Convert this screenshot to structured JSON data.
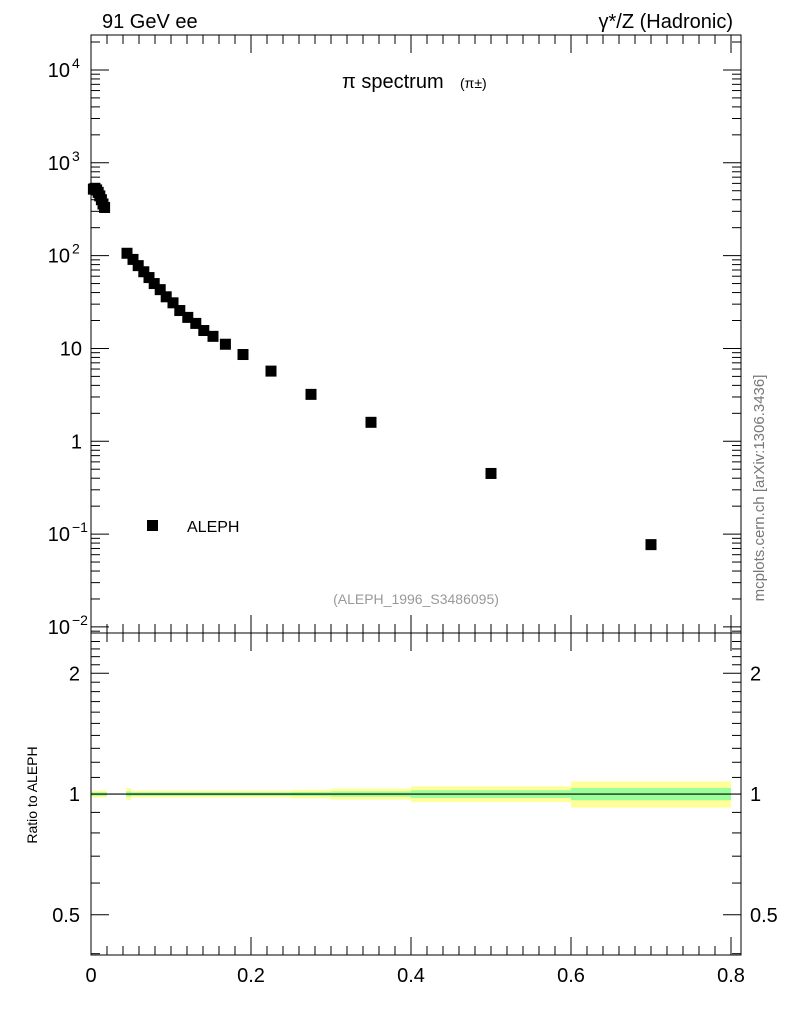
{
  "header": {
    "left": "91 GeV ee",
    "right": "γ*/Z (Hadronic)"
  },
  "side_label": "mcplots.cern.ch [arXiv:1306.3436]",
  "chart_data": [
    {
      "type": "scatter",
      "title": "π spectrum",
      "title_sub": "(π±)",
      "xlabel": "",
      "ylabel": "",
      "xscale": "linear",
      "yscale": "log",
      "xlim": [
        0,
        0.8125
      ],
      "ylim": [
        0.0086,
        23800
      ],
      "ytick_labels": [
        {
          "value": 0.01,
          "base": "10",
          "exp": "−2"
        },
        {
          "value": 0.1,
          "base": "10",
          "exp": "−1"
        },
        {
          "value": 1,
          "base": "1",
          "exp": ""
        },
        {
          "value": 10,
          "base": "10",
          "exp": ""
        },
        {
          "value": 100,
          "base": "10",
          "exp": "2"
        },
        {
          "value": 1000,
          "base": "10",
          "exp": "3"
        },
        {
          "value": 10000,
          "base": "10",
          "exp": "4"
        }
      ],
      "legend": {
        "placement": "bottom-left",
        "entries": [
          "ALEPH"
        ]
      },
      "annotation": "(ALEPH_1996_S3486095)",
      "series": [
        {
          "name": "ALEPH",
          "x": [
            0.003,
            0.005,
            0.007,
            0.009,
            0.011,
            0.013,
            0.015,
            0.017,
            0.045,
            0.0525,
            0.059,
            0.066,
            0.0725,
            0.079,
            0.0865,
            0.094,
            0.1025,
            0.111,
            0.121,
            0.131,
            0.141,
            0.1525,
            0.168,
            0.19,
            0.225,
            0.275,
            0.35,
            0.5,
            0.7
          ],
          "y": [
            520,
            530,
            510,
            480,
            440,
            400,
            360,
            330,
            106,
            91,
            78,
            67,
            58,
            50,
            43,
            36,
            31,
            25.6,
            21.6,
            18.6,
            15.6,
            13.5,
            11.1,
            8.6,
            5.7,
            3.2,
            1.6,
            0.45,
            0.077
          ]
        }
      ]
    },
    {
      "type": "area",
      "ylabel": "Ratio to ALEPH",
      "yscale": "log",
      "xlim": [
        0,
        0.8125
      ],
      "ylim": [
        0.397,
        2.52
      ],
      "ytick_labels": [
        "0.5",
        "1",
        "2"
      ],
      "yticks": [
        0.5,
        1,
        2
      ],
      "xtick_labels": [
        "0",
        "0.2",
        "0.4",
        "0.6",
        "0.8"
      ],
      "xticks": [
        0,
        0.2,
        0.4,
        0.6,
        0.8
      ],
      "reference_line": 1,
      "bands": [
        {
          "x0": 0.0,
          "x1": 0.02,
          "total": 0.02,
          "stat": 0.01
        },
        {
          "x0": 0.044,
          "x1": 0.05,
          "total": 0.035,
          "stat": 0.015
        },
        {
          "x0": 0.05,
          "x1": 0.25,
          "total": 0.02,
          "stat": 0.01
        },
        {
          "x0": 0.25,
          "x1": 0.3,
          "total": 0.025,
          "stat": 0.012
        },
        {
          "x0": 0.3,
          "x1": 0.4,
          "total": 0.032,
          "stat": 0.015
        },
        {
          "x0": 0.4,
          "x1": 0.6,
          "total": 0.045,
          "stat": 0.022
        },
        {
          "x0": 0.6,
          "x1": 0.8,
          "total": 0.075,
          "stat": 0.035
        }
      ],
      "colors": {
        "total": "#ffff99",
        "stat": "#99ff99"
      }
    }
  ]
}
